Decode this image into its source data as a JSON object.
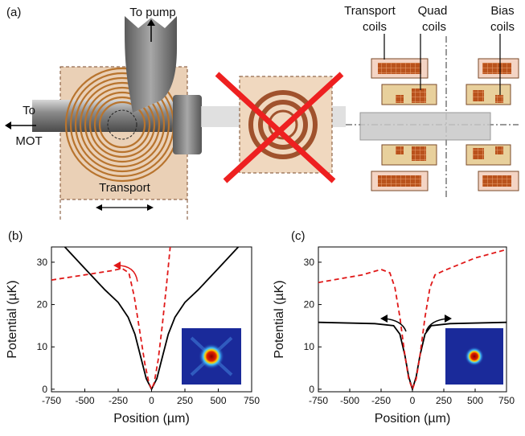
{
  "diagram": {
    "panel_label": "(a)",
    "to_pump": "To pump",
    "to_mot": [
      "To",
      "MOT"
    ],
    "transport": "Transport",
    "transport_coils": [
      "Transport",
      "coils"
    ],
    "quad_coils": [
      "Quad",
      "coils"
    ],
    "bias_coils": [
      "Bias",
      "coils"
    ]
  },
  "chart_data": [
    {
      "type": "line",
      "panel_label": "(b)",
      "xlabel": "Position (µm)",
      "ylabel": "Potential (µK)",
      "xlim": [
        -750,
        750
      ],
      "ylim": [
        -0.6,
        33.6
      ],
      "xticks": [
        -750,
        -500,
        -250,
        0,
        250,
        500,
        750
      ],
      "yticks": [
        0,
        10,
        20,
        30
      ],
      "series": [
        {
          "color": "#000000",
          "style": "solid",
          "x": [
            -650,
            -500,
            -350,
            -250,
            -175,
            -125,
            -80,
            -40,
            0,
            40,
            80,
            125,
            175,
            250,
            350,
            500,
            650
          ],
          "values": [
            33.6,
            28.5,
            23.5,
            20.5,
            17,
            13,
            7.5,
            2.5,
            0,
            2.5,
            7.5,
            13,
            17,
            20.5,
            23.5,
            28.5,
            33.6
          ]
        },
        {
          "color": "#e01818",
          "style": "dashed",
          "x": [
            -750,
            -500,
            -300,
            -220,
            -170,
            -130,
            -90,
            -50,
            -20,
            0,
            20,
            50,
            80,
            110,
            140
          ],
          "values": [
            25.8,
            27,
            28,
            28.5,
            27.5,
            22,
            14,
            6,
            1.5,
            0,
            1.5,
            7,
            15,
            24,
            33.6
          ]
        }
      ]
    },
    {
      "type": "line",
      "panel_label": "(c)",
      "xlabel": "Position (µm)",
      "ylabel": "Potential (µK)",
      "xlim": [
        -750,
        750
      ],
      "ylim": [
        -0.6,
        33.6
      ],
      "xticks": [
        -750,
        -500,
        -250,
        0,
        250,
        500,
        750
      ],
      "yticks": [
        0,
        10,
        20,
        30
      ],
      "series": [
        {
          "color": "#000000",
          "style": "solid",
          "x": [
            -750,
            -300,
            -150,
            -100,
            -60,
            -30,
            0,
            30,
            60,
            100,
            150,
            300,
            750
          ],
          "values": [
            15.8,
            15.5,
            15,
            13,
            8,
            3,
            0,
            3,
            8,
            13,
            15,
            15.5,
            15.8
          ]
        },
        {
          "color": "#e01818",
          "style": "dashed",
          "x": [
            -750,
            -400,
            -250,
            -180,
            -140,
            -100,
            -60,
            -30,
            0,
            30,
            60,
            100,
            140,
            180,
            250,
            500,
            750
          ],
          "values": [
            25.2,
            27,
            28.3,
            27.5,
            24,
            17,
            8,
            2.5,
            0,
            2.5,
            8,
            17,
            24,
            27,
            28,
            31,
            33
          ]
        }
      ]
    }
  ]
}
